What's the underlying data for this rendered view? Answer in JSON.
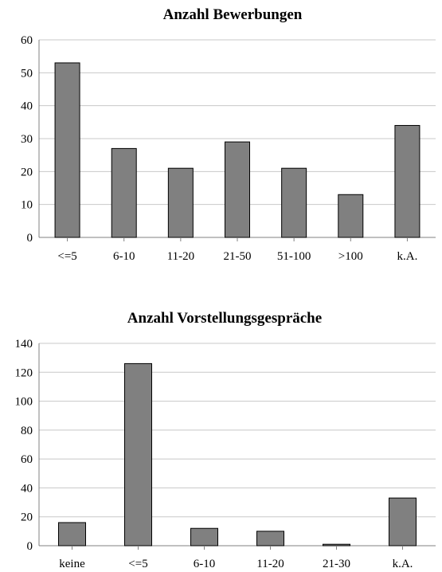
{
  "chart_data": [
    {
      "type": "bar",
      "title": "Anzahl Bewerbungen",
      "categories": [
        "<=5",
        "6-10",
        "11-20",
        "21-50",
        "51-100",
        ">100",
        "k.A."
      ],
      "values": [
        53,
        27,
        21,
        29,
        21,
        13,
        34
      ],
      "ylim": [
        0,
        60
      ],
      "yticks": [
        0,
        10,
        20,
        30,
        40,
        50,
        60
      ],
      "bar_color": "#808080",
      "grid": true
    },
    {
      "type": "bar",
      "title": "Anzahl Vorstellungsgespräche",
      "categories": [
        "keine",
        "<=5",
        "6-10",
        "11-20",
        "21-30",
        "k.A."
      ],
      "values": [
        16,
        126,
        12,
        10,
        1,
        33
      ],
      "ylim": [
        0,
        140
      ],
      "yticks": [
        0,
        20,
        40,
        60,
        80,
        100,
        120,
        140
      ],
      "bar_color": "#808080",
      "grid": true
    }
  ]
}
